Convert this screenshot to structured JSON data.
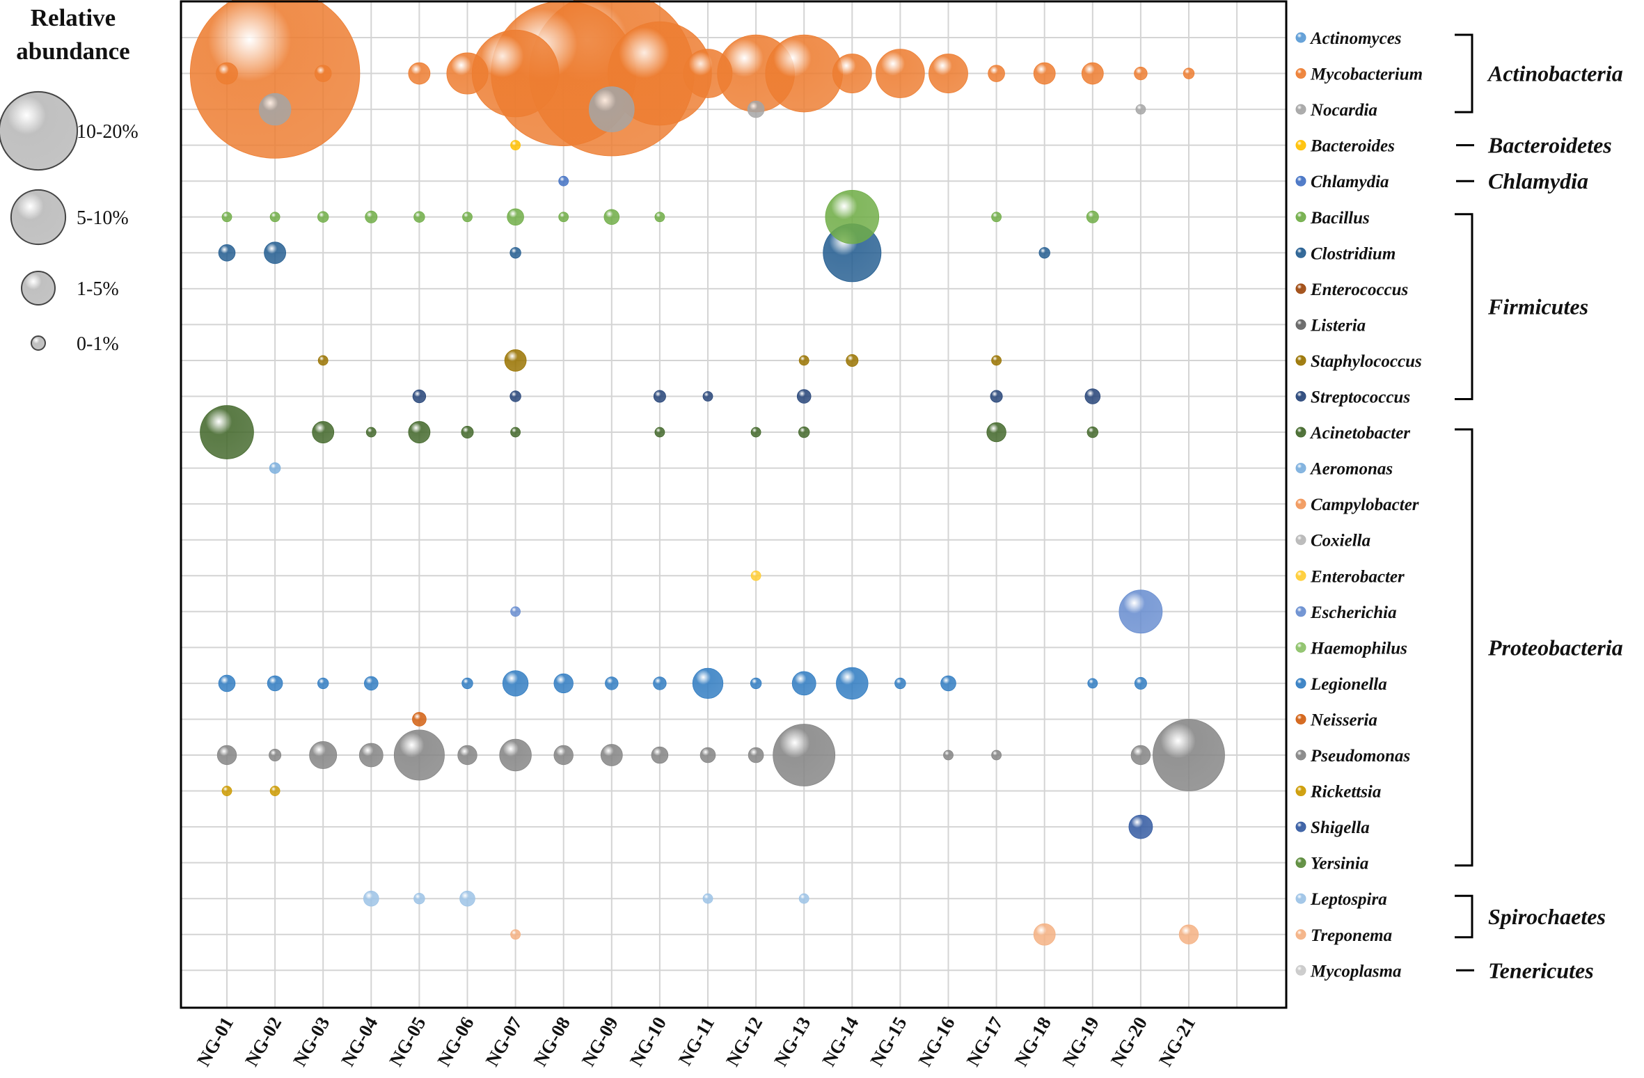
{
  "chart_data": {
    "type": "bubble",
    "title": "",
    "legend": {
      "title_line1": "Relative",
      "title_line2": "abundance",
      "classes": [
        {
          "label": "10-20%",
          "value": 15
        },
        {
          "label": "5-10%",
          "value": 7.5
        },
        {
          "label": "1-5%",
          "value": 3
        },
        {
          "label": "0-1%",
          "value": 0.5
        }
      ]
    },
    "samples": [
      "NG-01",
      "NG-02",
      "NG-03",
      "NG-04",
      "NG-05",
      "NG-06",
      "NG-07",
      "NG-08",
      "NG-09",
      "NG-10",
      "NG-11",
      "NG-12",
      "NG-13",
      "NG-14",
      "NG-15",
      "NG-16",
      "NG-17",
      "NG-18",
      "NG-19",
      "NG-20",
      "NG-21"
    ],
    "genera": [
      {
        "name": "Actinomyces",
        "color": "#5b9bd5"
      },
      {
        "name": "Mycobacterium",
        "color": "#ed7d31"
      },
      {
        "name": "Nocardia",
        "color": "#a5a5a5"
      },
      {
        "name": "Bacteroides",
        "color": "#ffc000"
      },
      {
        "name": "Chlamydia",
        "color": "#4472c4"
      },
      {
        "name": "Bacillus",
        "color": "#70ad47"
      },
      {
        "name": "Clostridium",
        "color": "#255e91"
      },
      {
        "name": "Enterococcus",
        "color": "#9e480e"
      },
      {
        "name": "Listeria",
        "color": "#636363"
      },
      {
        "name": "Staphylococcus",
        "color": "#997300"
      },
      {
        "name": "Streptococcus",
        "color": "#264478"
      },
      {
        "name": "Acinetobacter",
        "color": "#43682b"
      },
      {
        "name": "Aeromonas",
        "color": "#7cafdd"
      },
      {
        "name": "Campylobacter",
        "color": "#f1975a"
      },
      {
        "name": "Coxiella",
        "color": "#b7b7b7"
      },
      {
        "name": "Enterobacter",
        "color": "#ffcd33"
      },
      {
        "name": "Escherichia",
        "color": "#698ed0"
      },
      {
        "name": "Haemophilus",
        "color": "#8cc168"
      },
      {
        "name": "Legionella",
        "color": "#327dc2"
      },
      {
        "name": "Neisseria",
        "color": "#d26012"
      },
      {
        "name": "Pseudomonas",
        "color": "#848484"
      },
      {
        "name": "Rickettsia",
        "color": "#cc9a00"
      },
      {
        "name": "Shigella",
        "color": "#335aa1"
      },
      {
        "name": "Yersinia",
        "color": "#5a8a39"
      },
      {
        "name": "Leptospira",
        "color": "#9dc3e6"
      },
      {
        "name": "Treponema",
        "color": "#f4b183"
      },
      {
        "name": "Mycoplasma",
        "color": "#c9c9c9"
      }
    ],
    "phyla": [
      {
        "name": "Actinobacteria",
        "from": 0,
        "to": 2
      },
      {
        "name": "Bacteroidetes",
        "from": 3,
        "to": 3
      },
      {
        "name": "Chlamydia",
        "from": 4,
        "to": 4
      },
      {
        "name": "Firmicutes",
        "from": 5,
        "to": 10
      },
      {
        "name": "Proteobacteria",
        "from": 11,
        "to": 23
      },
      {
        "name": "Spirochaetes",
        "from": 24,
        "to": 25
      },
      {
        "name": "Tenericutes",
        "from": 26,
        "to": 26
      }
    ],
    "points": [
      [
        "NG-01",
        "Mycobacterium",
        0.2
      ],
      [
        "NG-02",
        "Mycobacterium",
        18
      ],
      [
        "NG-03",
        "Mycobacterium",
        0.1
      ],
      [
        "NG-05",
        "Mycobacterium",
        0.2
      ],
      [
        "NG-06",
        "Mycobacterium",
        0.9
      ],
      [
        "NG-07",
        "Mycobacterium",
        4.5
      ],
      [
        "NG-08",
        "Mycobacterium",
        13
      ],
      [
        "NG-09",
        "Mycobacterium",
        17
      ],
      [
        "NG-10",
        "Mycobacterium",
        6.5
      ],
      [
        "NG-11",
        "Mycobacterium",
        1.3
      ],
      [
        "NG-12",
        "Mycobacterium",
        3.5
      ],
      [
        "NG-13",
        "Mycobacterium",
        3.5
      ],
      [
        "NG-14",
        "Mycobacterium",
        0.8
      ],
      [
        "NG-15",
        "Mycobacterium",
        1.3
      ],
      [
        "NG-16",
        "Mycobacterium",
        0.8
      ],
      [
        "NG-17",
        "Mycobacterium",
        0.1
      ],
      [
        "NG-18",
        "Mycobacterium",
        0.2
      ],
      [
        "NG-19",
        "Mycobacterium",
        0.2
      ],
      [
        "NG-20",
        "Mycobacterium",
        0.05
      ],
      [
        "NG-21",
        "Mycobacterium",
        0.03
      ],
      [
        "NG-02",
        "Nocardia",
        0.5
      ],
      [
        "NG-09",
        "Nocardia",
        1.1
      ],
      [
        "NG-12",
        "Nocardia",
        0.1
      ],
      [
        "NG-20",
        "Nocardia",
        0.02
      ],
      [
        "NG-07",
        "Bacteroides",
        0.02
      ],
      [
        "NG-08",
        "Chlamydia",
        0.02
      ],
      [
        "NG-01",
        "Bacillus",
        0.02
      ],
      [
        "NG-02",
        "Bacillus",
        0.02
      ],
      [
        "NG-03",
        "Bacillus",
        0.03
      ],
      [
        "NG-04",
        "Bacillus",
        0.04
      ],
      [
        "NG-05",
        "Bacillus",
        0.03
      ],
      [
        "NG-06",
        "Bacillus",
        0.02
      ],
      [
        "NG-07",
        "Bacillus",
        0.1
      ],
      [
        "NG-08",
        "Bacillus",
        0.02
      ],
      [
        "NG-09",
        "Bacillus",
        0.08
      ],
      [
        "NG-10",
        "Bacillus",
        0.02
      ],
      [
        "NG-14",
        "Bacillus",
        1.6
      ],
      [
        "NG-17",
        "Bacillus",
        0.02
      ],
      [
        "NG-19",
        "Bacillus",
        0.04
      ],
      [
        "NG-01",
        "Clostridium",
        0.1
      ],
      [
        "NG-02",
        "Clostridium",
        0.2
      ],
      [
        "NG-07",
        "Clostridium",
        0.03
      ],
      [
        "NG-14",
        "Clostridium",
        1.9
      ],
      [
        "NG-18",
        "Clostridium",
        0.03
      ],
      [
        "NG-03",
        "Staphylococcus",
        0.02
      ],
      [
        "NG-07",
        "Staphylococcus",
        0.2
      ],
      [
        "NG-13",
        "Staphylococcus",
        0.02
      ],
      [
        "NG-14",
        "Staphylococcus",
        0.04
      ],
      [
        "NG-17",
        "Staphylococcus",
        0.02
      ],
      [
        "NG-05",
        "Streptococcus",
        0.05
      ],
      [
        "NG-07",
        "Streptococcus",
        0.03
      ],
      [
        "NG-10",
        "Streptococcus",
        0.04
      ],
      [
        "NG-11",
        "Streptococcus",
        0.02
      ],
      [
        "NG-13",
        "Streptococcus",
        0.06
      ],
      [
        "NG-17",
        "Streptococcus",
        0.04
      ],
      [
        "NG-19",
        "Streptococcus",
        0.08
      ],
      [
        "NG-01",
        "Acinetobacter",
        1.6
      ],
      [
        "NG-03",
        "Acinetobacter",
        0.2
      ],
      [
        "NG-04",
        "Acinetobacter",
        0.02
      ],
      [
        "NG-05",
        "Acinetobacter",
        0.2
      ],
      [
        "NG-06",
        "Acinetobacter",
        0.04
      ],
      [
        "NG-07",
        "Acinetobacter",
        0.02
      ],
      [
        "NG-10",
        "Acinetobacter",
        0.02
      ],
      [
        "NG-12",
        "Acinetobacter",
        0.02
      ],
      [
        "NG-13",
        "Acinetobacter",
        0.03
      ],
      [
        "NG-17",
        "Acinetobacter",
        0.15
      ],
      [
        "NG-19",
        "Acinetobacter",
        0.03
      ],
      [
        "NG-02",
        "Aeromonas",
        0.03
      ],
      [
        "NG-12",
        "Enterobacter",
        0.02
      ],
      [
        "NG-07",
        "Escherichia",
        0.02
      ],
      [
        "NG-20",
        "Escherichia",
        1.0
      ],
      [
        "NG-01",
        "Legionella",
        0.1
      ],
      [
        "NG-02",
        "Legionella",
        0.08
      ],
      [
        "NG-03",
        "Legionella",
        0.03
      ],
      [
        "NG-04",
        "Legionella",
        0.06
      ],
      [
        "NG-06",
        "Legionella",
        0.03
      ],
      [
        "NG-07",
        "Legionella",
        0.3
      ],
      [
        "NG-08",
        "Legionella",
        0.15
      ],
      [
        "NG-09",
        "Legionella",
        0.05
      ],
      [
        "NG-10",
        "Legionella",
        0.05
      ],
      [
        "NG-11",
        "Legionella",
        0.45
      ],
      [
        "NG-12",
        "Legionella",
        0.03
      ],
      [
        "NG-13",
        "Legionella",
        0.25
      ],
      [
        "NG-14",
        "Legionella",
        0.5
      ],
      [
        "NG-15",
        "Legionella",
        0.03
      ],
      [
        "NG-16",
        "Legionella",
        0.08
      ],
      [
        "NG-19",
        "Legionella",
        0.02
      ],
      [
        "NG-20",
        "Legionella",
        0.04
      ],
      [
        "NG-05",
        "Neisseria",
        0.06
      ],
      [
        "NG-01",
        "Pseudomonas",
        0.15
      ],
      [
        "NG-02",
        "Pseudomonas",
        0.04
      ],
      [
        "NG-03",
        "Pseudomonas",
        0.35
      ],
      [
        "NG-04",
        "Pseudomonas",
        0.25
      ],
      [
        "NG-05",
        "Pseudomonas",
        1.4
      ],
      [
        "NG-06",
        "Pseudomonas",
        0.15
      ],
      [
        "NG-07",
        "Pseudomonas",
        0.5
      ],
      [
        "NG-08",
        "Pseudomonas",
        0.15
      ],
      [
        "NG-09",
        "Pseudomonas",
        0.2
      ],
      [
        "NG-10",
        "Pseudomonas",
        0.1
      ],
      [
        "NG-11",
        "Pseudomonas",
        0.08
      ],
      [
        "NG-12",
        "Pseudomonas",
        0.08
      ],
      [
        "NG-13",
        "Pseudomonas",
        2.2
      ],
      [
        "NG-16",
        "Pseudomonas",
        0.02
      ],
      [
        "NG-17",
        "Pseudomonas",
        0.02
      ],
      [
        "NG-20",
        "Pseudomonas",
        0.15
      ],
      [
        "NG-21",
        "Pseudomonas",
        3.0
      ],
      [
        "NG-01",
        "Rickettsia",
        0.02
      ],
      [
        "NG-02",
        "Rickettsia",
        0.02
      ],
      [
        "NG-20",
        "Shigella",
        0.25
      ],
      [
        "NG-04",
        "Leptospira",
        0.08
      ],
      [
        "NG-05",
        "Leptospira",
        0.03
      ],
      [
        "NG-06",
        "Leptospira",
        0.08
      ],
      [
        "NG-11",
        "Leptospira",
        0.02
      ],
      [
        "NG-13",
        "Leptospira",
        0.02
      ],
      [
        "NG-07",
        "Treponema",
        0.02
      ],
      [
        "NG-18",
        "Treponema",
        0.2
      ],
      [
        "NG-21",
        "Treponema",
        0.15
      ]
    ]
  }
}
